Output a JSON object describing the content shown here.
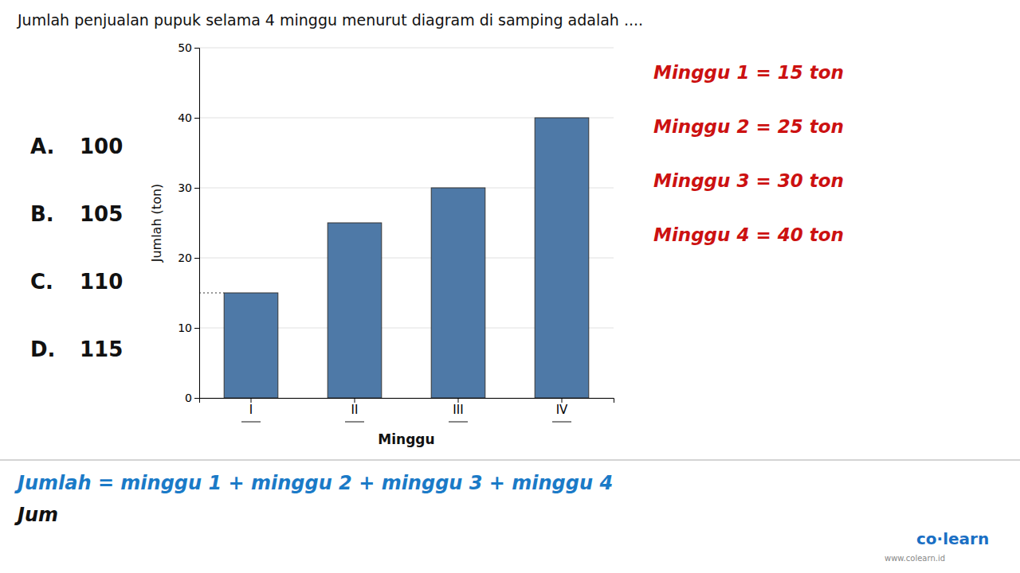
{
  "chart_data": {
    "type": "bar",
    "title": "Jumlah penjualan pupuk selama 4 minggu menurut diagram di samping adalah ....",
    "categories": [
      "I",
      "II",
      "III",
      "IV"
    ],
    "values": [
      15,
      25,
      30,
      40
    ],
    "xlabel": "Minggu",
    "ylabel": "Jumlah (ton)",
    "ylim": [
      0,
      50
    ],
    "yticks": [
      0,
      10,
      20,
      30,
      40,
      50
    ],
    "grid": true,
    "annotations": [
      "A.",
      "100",
      "B.",
      "105",
      "C.",
      "110",
      "D.",
      "115",
      "Minggu 1  =  15 ton",
      "Minggu 2  =  25 ton",
      "Minggu 3  =  30 ton",
      "Minggu 4  =  40 ton",
      "Jumlah = minggu 1 + minggu 2 + minggu 3 + minggu 4",
      "Jum",
      "co·learn",
      "www.colearn.id"
    ]
  }
}
